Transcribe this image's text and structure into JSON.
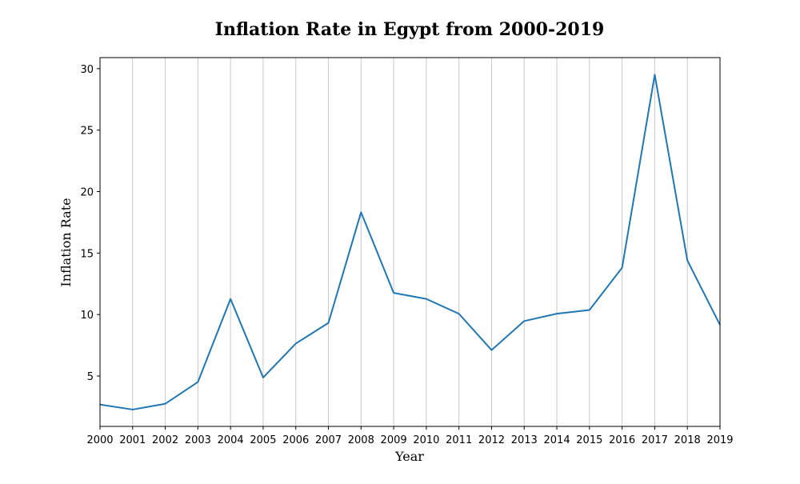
{
  "chart_data": {
    "type": "line",
    "title": "Inflation Rate in Egypt from 2000-2019",
    "xlabel": "Year",
    "ylabel": "Inflation Rate",
    "x": [
      2000,
      2001,
      2002,
      2003,
      2004,
      2005,
      2006,
      2007,
      2008,
      2009,
      2010,
      2011,
      2012,
      2013,
      2014,
      2015,
      2016,
      2017,
      2018,
      2019
    ],
    "x_tick_labels": [
      "2000",
      "2001",
      "2002",
      "2003",
      "2004",
      "2005",
      "2006",
      "2007",
      "2008",
      "2009",
      "2010",
      "2011",
      "2012",
      "2013",
      "2014",
      "2015",
      "2016",
      "2017",
      "2018",
      "2019"
    ],
    "series": [
      {
        "values": [
          2.68,
          2.27,
          2.74,
          4.51,
          11.27,
          4.87,
          7.64,
          9.32,
          18.32,
          11.76,
          11.27,
          10.06,
          7.11,
          9.47,
          10.07,
          10.37,
          13.81,
          29.51,
          14.4,
          9.15
        ]
      }
    ],
    "xlim": [
      2000,
      2019
    ],
    "ylim": [
      0.9,
      30.9
    ],
    "y_ticks": [
      5,
      10,
      15,
      20,
      25,
      30
    ],
    "y_tick_labels": [
      "5",
      "10",
      "15",
      "20",
      "25",
      "30"
    ],
    "grid": "vertical",
    "legend": "none",
    "colors": {
      "line": "#1f77b4",
      "grid": "#c8c8c8",
      "axis": "#000000"
    }
  }
}
